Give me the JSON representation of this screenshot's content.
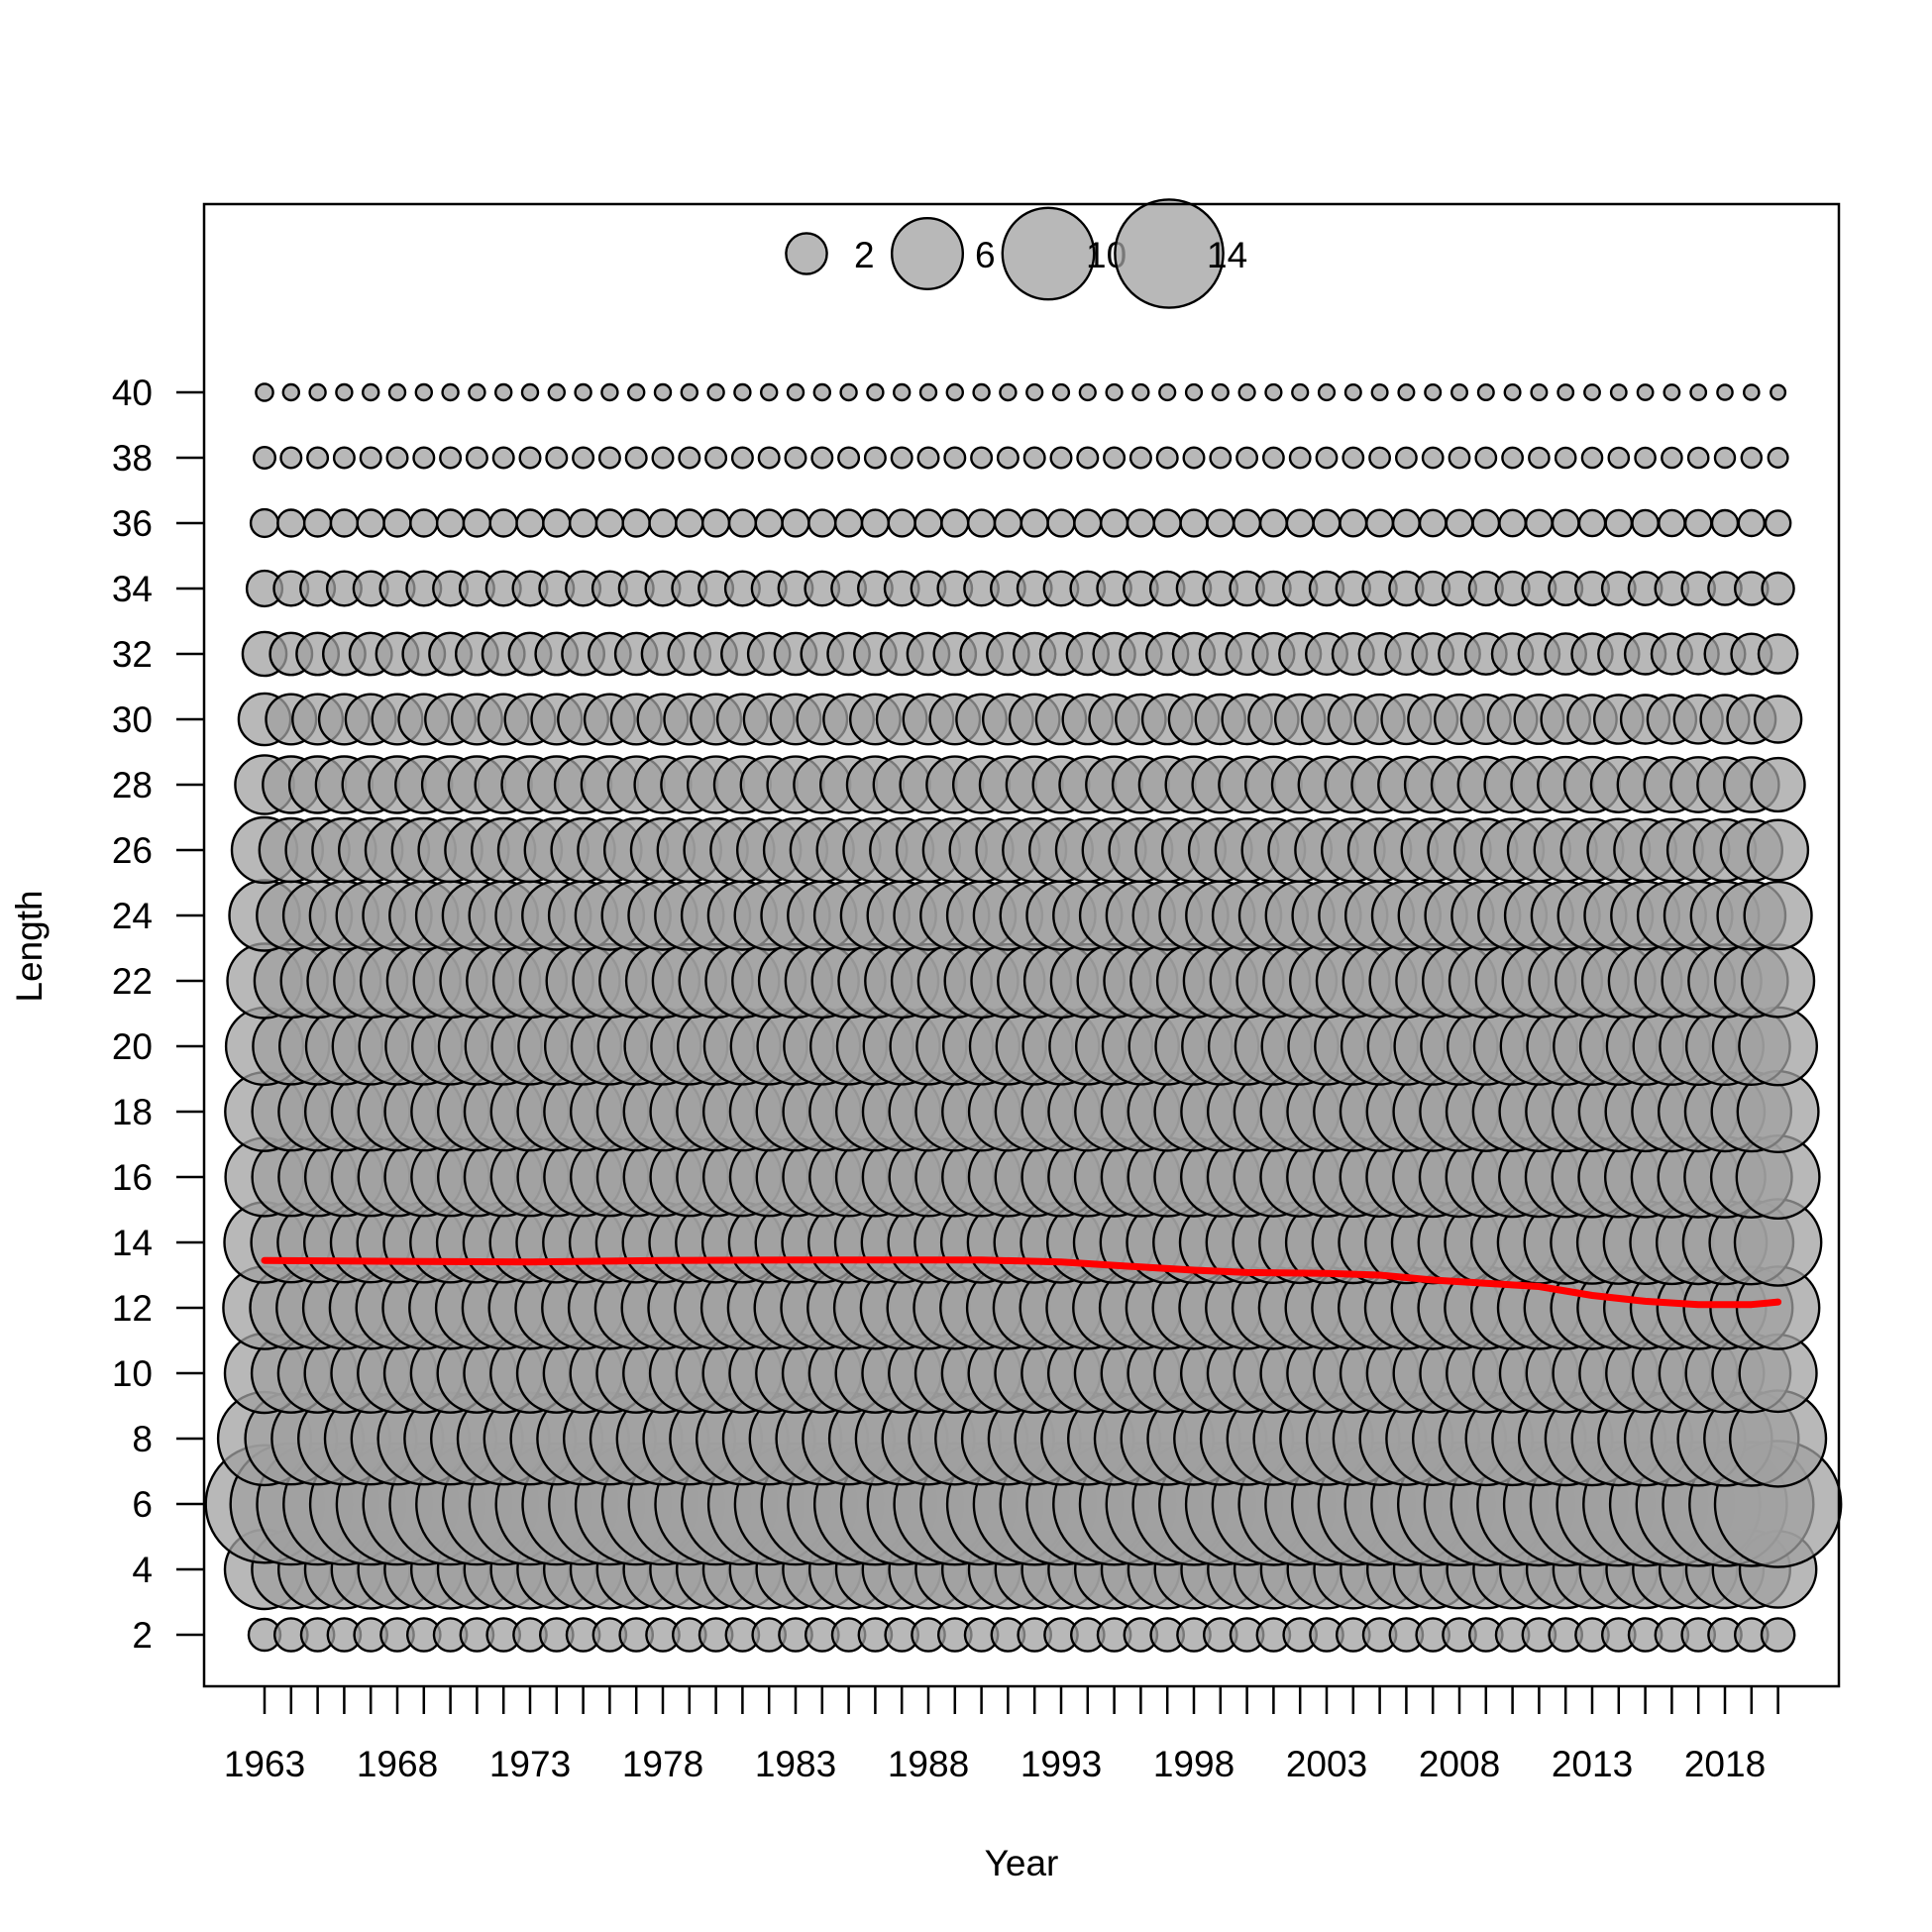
{
  "chart_data": {
    "type": "scatter",
    "subtype": "bubble",
    "title": "",
    "xlabel": "Year",
    "ylabel": "Length",
    "xlim": [
      1961,
      2022
    ],
    "ylim": [
      0,
      48
    ],
    "x_ticks": [
      1963,
      1964,
      1965,
      1966,
      1967,
      1968,
      1969,
      1970,
      1971,
      1972,
      1973,
      1974,
      1975,
      1976,
      1977,
      1978,
      1979,
      1980,
      1981,
      1982,
      1983,
      1984,
      1985,
      1986,
      1987,
      1988,
      1989,
      1990,
      1991,
      1992,
      1993,
      1994,
      1995,
      1996,
      1997,
      1998,
      1999,
      2000,
      2001,
      2002,
      2003,
      2004,
      2005,
      2006,
      2007,
      2008,
      2009,
      2010,
      2011,
      2012,
      2013,
      2014,
      2015,
      2016,
      2017,
      2018,
      2019,
      2020
    ],
    "x_tick_labels": [
      "1963",
      "1968",
      "1973",
      "1978",
      "1983",
      "1988",
      "1993",
      "1998",
      "2003",
      "2008",
      "2013",
      "2018"
    ],
    "x_tick_label_years": [
      1963,
      1968,
      1973,
      1978,
      1983,
      1988,
      1993,
      1998,
      2003,
      2008,
      2013,
      2018
    ],
    "y_ticks": [
      2,
      4,
      6,
      8,
      10,
      12,
      14,
      16,
      18,
      20,
      22,
      24,
      26,
      28,
      30,
      32,
      34,
      36,
      38,
      40
    ],
    "y_tick_labels": [
      "2",
      "4",
      "6",
      "8",
      "10",
      "12",
      "14",
      "16",
      "18",
      "20",
      "22",
      "24",
      "26",
      "28",
      "30",
      "32",
      "34",
      "36",
      "38",
      "40"
    ],
    "years": [
      1963,
      1964,
      1965,
      1966,
      1967,
      1968,
      1969,
      1970,
      1971,
      1972,
      1973,
      1974,
      1975,
      1976,
      1977,
      1978,
      1979,
      1980,
      1981,
      1982,
      1983,
      1984,
      1985,
      1986,
      1987,
      1988,
      1989,
      1990,
      1991,
      1992,
      1993,
      1994,
      1995,
      1996,
      1997,
      1998,
      1999,
      2000,
      2001,
      2002,
      2003,
      2004,
      2005,
      2006,
      2007,
      2008,
      2009,
      2010,
      2011,
      2012,
      2013,
      2014,
      2015,
      2016,
      2017,
      2018,
      2019,
      2020
    ],
    "lengths": [
      2,
      4,
      6,
      8,
      10,
      12,
      14,
      16,
      18,
      20,
      22,
      24,
      26,
      28,
      30,
      32,
      34,
      36,
      38,
      40
    ],
    "bubble_values_first_year": [
      1.2,
      7.5,
      16.5,
      10.3,
      7.5,
      8.1,
      7.7,
      7.3,
      7.4,
      7.1,
      6.6,
      5.9,
      5.1,
      4.1,
      3.2,
      2.3,
      1.5,
      0.9,
      0.55,
      0.35
    ],
    "bubble_values_typical_year": [
      1.3,
      7.3,
      17.5,
      10.0,
      7.4,
      8.0,
      7.6,
      7.2,
      7.2,
      6.9,
      6.4,
      5.6,
      4.8,
      3.8,
      3.0,
      2.1,
      1.4,
      0.85,
      0.5,
      0.3
    ],
    "bubble_values_last_year": [
      1.3,
      7.0,
      19.0,
      11.0,
      7.1,
      8.1,
      8.9,
      8.2,
      7.8,
      7.2,
      6.2,
      5.4,
      4.3,
      3.4,
      2.6,
      1.8,
      1.2,
      0.75,
      0.45,
      0.25
    ],
    "mean_line": {
      "color": "#ff0000",
      "points": [
        [
          1963,
          13.45
        ],
        [
          1968,
          13.42
        ],
        [
          1973,
          13.4
        ],
        [
          1978,
          13.45
        ],
        [
          1983,
          13.46
        ],
        [
          1988,
          13.46
        ],
        [
          1990,
          13.46
        ],
        [
          1993,
          13.4
        ],
        [
          1996,
          13.25
        ],
        [
          1998,
          13.15
        ],
        [
          2000,
          13.08
        ],
        [
          2003,
          13.05
        ],
        [
          2005,
          13.0
        ],
        [
          2007,
          12.85
        ],
        [
          2009,
          12.75
        ],
        [
          2011,
          12.65
        ],
        [
          2013,
          12.38
        ],
        [
          2015,
          12.2
        ],
        [
          2017,
          12.1
        ],
        [
          2019,
          12.1
        ],
        [
          2020,
          12.18
        ]
      ]
    },
    "legend": {
      "placement": "top-center",
      "entries": [
        {
          "value": 2,
          "label": "2"
        },
        {
          "value": 6,
          "label": "6"
        },
        {
          "value": 10,
          "label": "10"
        },
        {
          "value": 14,
          "label": "14"
        }
      ]
    },
    "grid": false,
    "colors": {
      "bubble_fill": "#a0a0a0",
      "bubble_stroke": "#000000",
      "line": "#ff0000",
      "axis": "#000000"
    }
  }
}
